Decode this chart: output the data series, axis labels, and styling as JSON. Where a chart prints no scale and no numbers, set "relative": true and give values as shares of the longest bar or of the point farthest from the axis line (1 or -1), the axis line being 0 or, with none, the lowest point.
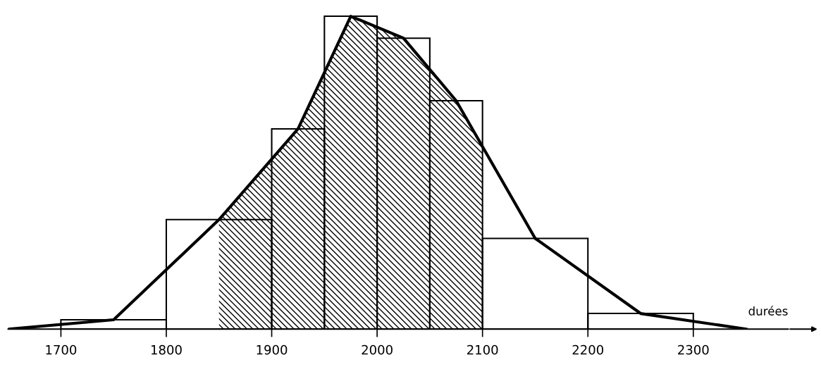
{
  "chart_data": {
    "type": "histogram",
    "relative": true,
    "xlabel": "durées",
    "bins": [
      1700,
      1800,
      1900,
      1950,
      2000,
      2050,
      2100,
      2200,
      2300
    ],
    "values": [
      0.03,
      0.35,
      0.64,
      1,
      0.93,
      0.73,
      0.29,
      0.05
    ],
    "color": "#000000",
    "series": [
      {
        "type": "area",
        "color": "#000000",
        "x": [
          1850,
          1925,
          1975,
          2025,
          2075,
          2100
        ],
        "values": [
          0.35,
          0.64,
          1,
          0.93,
          0.73,
          0.58
        ]
      },
      {
        "type": "line",
        "color": "#000000",
        "x": [
          1650,
          1750,
          1850,
          1925,
          1975,
          2025,
          2075,
          2150,
          2250,
          2350
        ],
        "values": [
          0,
          0.03,
          0.35,
          0.64,
          1,
          0.93,
          0.73,
          0.29,
          0.05,
          0
        ]
      }
    ],
    "xlim": [
      1650,
      2390
    ],
    "xticks": [
      1700,
      1800,
      1900,
      2000,
      2100,
      2200,
      2300
    ],
    "grid": false,
    "legend": false
  }
}
